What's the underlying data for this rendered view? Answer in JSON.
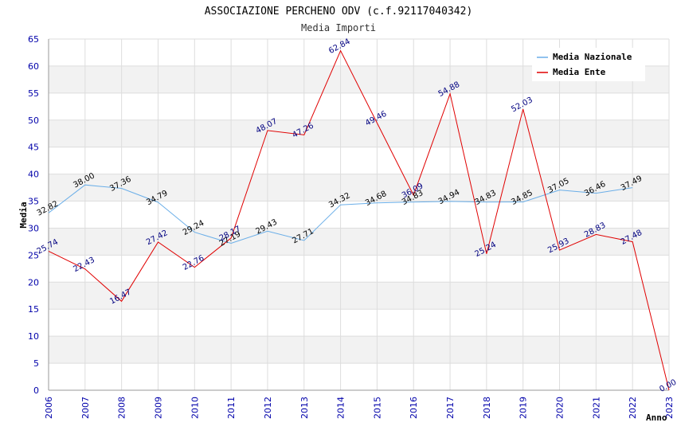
{
  "colors": {
    "nazionale": "#6aaee8",
    "ente": "#e00000",
    "label_nazionale": "#000000",
    "label_ente": "#000080",
    "band": "#f2f2f2",
    "grid": "#dddddd"
  },
  "chart_data": {
    "type": "line",
    "title": "ASSOCIAZIONE PERCHENO ODV (c.f.92117040342)",
    "subtitle": "Media Importi",
    "xlabel": "Anno",
    "ylabel": "Media",
    "ylim": [
      0,
      65
    ],
    "yticks": [
      "0",
      "5",
      "10",
      "15",
      "20",
      "25",
      "30",
      "35",
      "40",
      "45",
      "50",
      "55",
      "60",
      "65"
    ],
    "categories": [
      "2006",
      "2007",
      "2008",
      "2009",
      "2010",
      "2011",
      "2012",
      "2013",
      "2014",
      "2015",
      "2016",
      "2017",
      "2018",
      "2019",
      "2020",
      "2021",
      "2022",
      "2023"
    ],
    "legend_position": "top-right",
    "grid": true,
    "series": [
      {
        "name": "Media Nazionale",
        "values": [
          32.82,
          38.0,
          37.36,
          34.79,
          29.24,
          27.19,
          29.43,
          27.71,
          34.32,
          34.68,
          34.83,
          34.94,
          34.83,
          34.85,
          37.05,
          36.46,
          37.49,
          null
        ],
        "labels": [
          "32.82",
          "38.00",
          "37.36",
          "34.79",
          "29.24",
          "27.19",
          "29.43",
          "27.71",
          "34.32",
          "34.68",
          "34.83",
          "34.94",
          "34.83",
          "34.85",
          "37.05",
          "36.46",
          "37.49",
          ""
        ]
      },
      {
        "name": "Media Ente",
        "values": [
          25.74,
          22.43,
          16.47,
          27.42,
          22.76,
          28.17,
          48.07,
          47.26,
          62.84,
          49.46,
          36.09,
          54.88,
          25.24,
          52.03,
          25.93,
          28.83,
          27.48,
          0.0
        ],
        "labels": [
          "25.74",
          "22.43",
          "16.47",
          "27.42",
          "22.76",
          "28.17",
          "48.07",
          "47.26",
          "62.84",
          "49.46",
          "36.09",
          "54.88",
          "25.24",
          "52.03",
          "25.93",
          "28.83",
          "27.48",
          "0.00"
        ]
      }
    ]
  }
}
